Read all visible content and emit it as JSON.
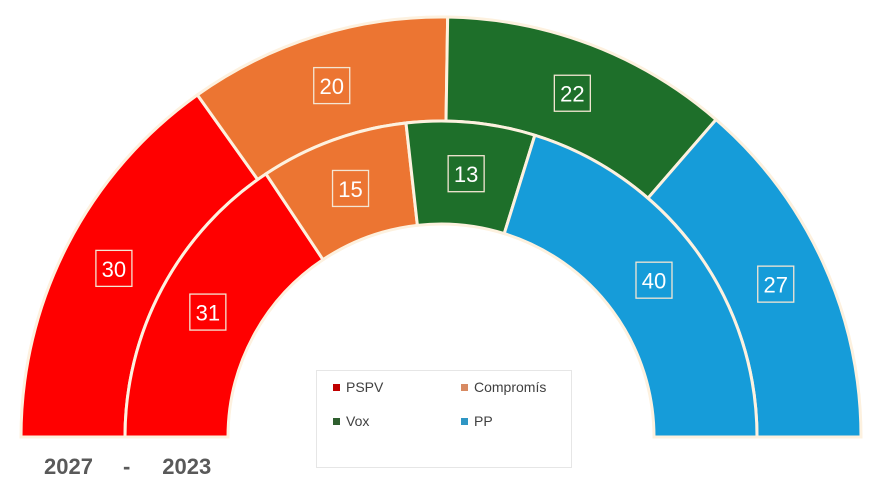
{
  "chart_data": {
    "type": "parliament-donut",
    "title": "",
    "rings": [
      {
        "name": "2027",
        "position": "outer",
        "values": [
          {
            "party": "PSPV",
            "seats": 30
          },
          {
            "party": "Compromís",
            "seats": 20
          },
          {
            "party": "Vox",
            "seats": 22
          },
          {
            "party": "PP",
            "seats": 27
          }
        ]
      },
      {
        "name": "2023",
        "position": "inner",
        "values": [
          {
            "party": "PSPV",
            "seats": 31
          },
          {
            "party": "Compromís",
            "seats": 15
          },
          {
            "party": "Vox",
            "seats": 13
          },
          {
            "party": "PP",
            "seats": 40
          }
        ]
      }
    ],
    "series": [
      {
        "name": "PSPV",
        "values": [
          30,
          31
        ],
        "color": "#ff0000"
      },
      {
        "name": "Compromís",
        "values": [
          20,
          15
        ],
        "color": "#ec7532"
      },
      {
        "name": "Vox",
        "values": [
          22,
          13
        ],
        "color": "#1e6f2a"
      },
      {
        "name": "PP",
        "values": [
          27,
          40
        ],
        "color": "#169cd9"
      }
    ],
    "categories": [
      "2027",
      "2023"
    ],
    "legend": {
      "position": "center-bottom",
      "entries": [
        "PSPV",
        "Compromís",
        "Vox",
        "PP"
      ]
    }
  },
  "legend": {
    "items": [
      {
        "label": "PSPV",
        "color": "#c00000"
      },
      {
        "label": "Compromís",
        "color": "#d88a62"
      },
      {
        "label": "Vox",
        "color": "#2f5f2f"
      },
      {
        "label": "PP",
        "color": "#2f96c4"
      }
    ]
  },
  "footer": {
    "year_outer": "2027",
    "separator": "-",
    "year_inner": "2023"
  }
}
